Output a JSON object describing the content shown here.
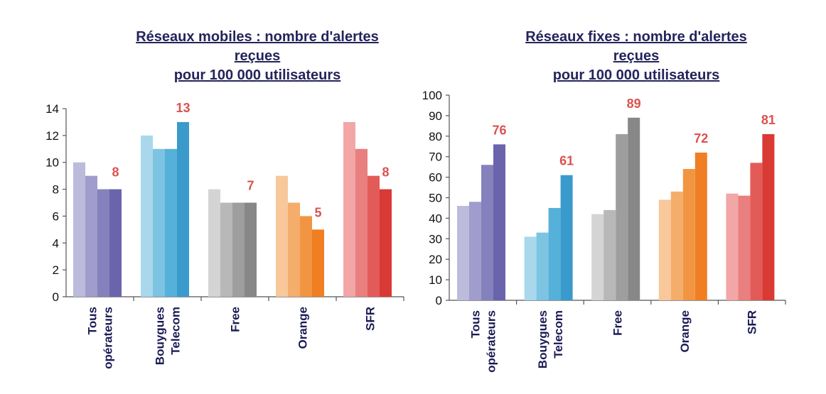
{
  "chart_data": [
    {
      "type": "bar",
      "title_lines": [
        "Réseaux mobiles : nombre d'alertes",
        "reçues",
        "pour 100 000 utilisateurs"
      ],
      "categories": [
        "Tous opérateurs",
        "Bouygues Telecom",
        "Free",
        "Orange",
        "SFR"
      ],
      "category_lines": [
        [
          "Tous",
          "opérateurs"
        ],
        [
          "Bouygues",
          "Telecom"
        ],
        [
          "Free"
        ],
        [
          "Orange"
        ],
        [
          "SFR"
        ]
      ],
      "ylim": [
        0,
        14
      ],
      "yticks": [
        0,
        2,
        4,
        6,
        8,
        10,
        12,
        14
      ],
      "groups": [
        {
          "values": [
            10,
            9,
            8,
            8
          ],
          "colors": [
            "#bcbbdc",
            "#a09ccc",
            "#8581bc",
            "#6a64ad"
          ],
          "label": "8"
        },
        {
          "values": [
            12,
            11,
            11,
            13
          ],
          "colors": [
            "#a9d8ec",
            "#7cc4e2",
            "#55b1d9",
            "#3a9acb"
          ],
          "label": "13"
        },
        {
          "values": [
            8,
            7,
            7,
            7
          ],
          "colors": [
            "#d4d4d4",
            "#b8b8b8",
            "#9e9e9e",
            "#878787"
          ],
          "label": "7"
        },
        {
          "values": [
            9,
            7,
            6,
            5
          ],
          "colors": [
            "#f8c89a",
            "#f5ad6c",
            "#f29542",
            "#ef7f22"
          ],
          "label": "5"
        },
        {
          "values": [
            13,
            11,
            9,
            8
          ],
          "colors": [
            "#f2a6a6",
            "#ea7f7f",
            "#e35b58",
            "#d93a34"
          ],
          "label": "8"
        }
      ],
      "label_color": "#d9534f"
    },
    {
      "type": "bar",
      "title_lines": [
        "Réseaux fixes : nombre d'alertes",
        "reçues",
        "pour 100 000 utilisateurs"
      ],
      "categories": [
        "Tous opérateurs",
        "Bouygues Telecom",
        "Free",
        "Orange",
        "SFR"
      ],
      "category_lines": [
        [
          "Tous",
          "opérateurs"
        ],
        [
          "Bouygues",
          "Telecom"
        ],
        [
          "Free"
        ],
        [
          "Orange"
        ],
        [
          "SFR"
        ]
      ],
      "ylim": [
        0,
        100
      ],
      "yticks": [
        0,
        10,
        20,
        30,
        40,
        50,
        60,
        70,
        80,
        90,
        100
      ],
      "groups": [
        {
          "values": [
            46,
            48,
            66,
            76
          ],
          "colors": [
            "#bcbbdc",
            "#a09ccc",
            "#8581bc",
            "#6a64ad"
          ],
          "label": "76"
        },
        {
          "values": [
            31,
            33,
            45,
            61
          ],
          "colors": [
            "#a9d8ec",
            "#7cc4e2",
            "#55b1d9",
            "#3a9acb"
          ],
          "label": "61"
        },
        {
          "values": [
            42,
            44,
            81,
            89
          ],
          "colors": [
            "#d4d4d4",
            "#b8b8b8",
            "#9e9e9e",
            "#878787"
          ],
          "label": "89"
        },
        {
          "values": [
            49,
            53,
            64,
            72
          ],
          "colors": [
            "#f8c89a",
            "#f5ad6c",
            "#f29542",
            "#ef7f22"
          ],
          "label": "72"
        },
        {
          "values": [
            52,
            51,
            67,
            81
          ],
          "colors": [
            "#f2a6a6",
            "#ea7f7f",
            "#e35b58",
            "#d93a34"
          ],
          "label": "81"
        }
      ],
      "label_color": "#d9534f"
    }
  ]
}
